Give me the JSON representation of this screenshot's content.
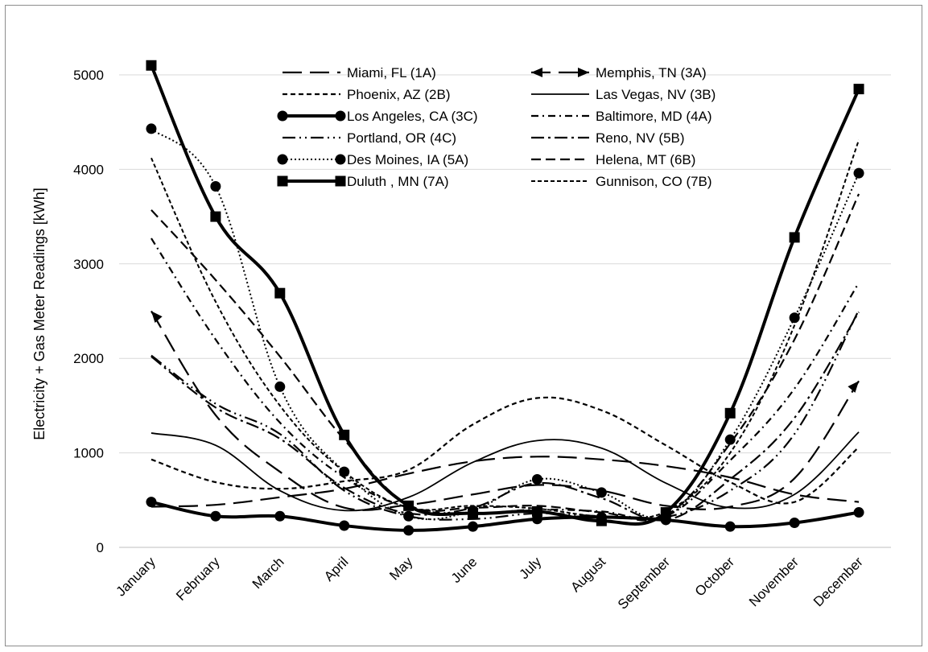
{
  "chart_data": {
    "type": "line",
    "title": "",
    "xlabel": "",
    "ylabel": "Electricity + Gas Meter Readings [kWh]",
    "ylim": [
      0,
      5000
    ],
    "yticks": [
      0,
      1000,
      2000,
      3000,
      4000,
      5000
    ],
    "grid": "horizontal",
    "legend_position": "top-center",
    "categories": [
      "January",
      "February",
      "March",
      "April",
      "May",
      "June",
      "July",
      "August",
      "September",
      "October",
      "November",
      "December"
    ],
    "series": [
      {
        "name": "Miami, FL (1A)",
        "style": "longdash",
        "values": [
          430,
          450,
          530,
          620,
          780,
          910,
          960,
          930,
          860,
          740,
          560,
          480
        ]
      },
      {
        "name": "Memphis, TN (3A)",
        "style": "longdash-arrow",
        "values": [
          2500,
          1400,
          800,
          420,
          450,
          560,
          660,
          600,
          440,
          430,
          730,
          1760
        ]
      },
      {
        "name": "Phoenix, AZ (2B)",
        "style": "shortdash",
        "values": [
          930,
          690,
          620,
          700,
          820,
          1300,
          1580,
          1450,
          1080,
          690,
          480,
          1060
        ]
      },
      {
        "name": "Las Vegas, NV (3B)",
        "style": "solid-thin",
        "values": [
          1210,
          1080,
          600,
          390,
          530,
          900,
          1130,
          1050,
          680,
          420,
          560,
          1220
        ]
      },
      {
        "name": "Los Angeles, CA (3C)",
        "style": "solid-thick-circle",
        "values": [
          480,
          330,
          330,
          230,
          180,
          220,
          300,
          320,
          290,
          220,
          260,
          370
        ]
      },
      {
        "name": "Baltimore, MD (4A)",
        "style": "dashdot-small",
        "values": [
          3270,
          2200,
          1320,
          740,
          420,
          360,
          400,
          380,
          330,
          920,
          1680,
          2800
        ]
      },
      {
        "name": "Portland, OR (4C)",
        "style": "dashdotdot",
        "values": [
          2030,
          1520,
          1200,
          600,
          330,
          300,
          360,
          330,
          320,
          600,
          1200,
          2510
        ]
      },
      {
        "name": "Reno, NV (5B)",
        "style": "dashdot",
        "values": [
          2020,
          1480,
          1150,
          630,
          360,
          420,
          680,
          520,
          290,
          720,
          1370,
          2490
        ]
      },
      {
        "name": "Des Moines, IA (5A)",
        "style": "dotted-circle",
        "values": [
          4430,
          3820,
          1700,
          800,
          330,
          390,
          720,
          580,
          330,
          1140,
          2430,
          3960
        ]
      },
      {
        "name": "Helena, MT (6B)",
        "style": "mediumdash",
        "values": [
          3570,
          2830,
          2020,
          1140,
          450,
          420,
          440,
          370,
          340,
          1100,
          2200,
          3740
        ]
      },
      {
        "name": "Duluth , MN (7A)",
        "style": "solid-thick-square",
        "values": [
          5100,
          3500,
          2690,
          1190,
          440,
          360,
          380,
          280,
          370,
          1420,
          3280,
          4850
        ]
      },
      {
        "name": "Gunnison, CO (7B)",
        "style": "dotdash-fine",
        "values": [
          4120,
          2600,
          1500,
          800,
          420,
          440,
          410,
          330,
          380,
          1000,
          2350,
          4310
        ]
      }
    ]
  }
}
